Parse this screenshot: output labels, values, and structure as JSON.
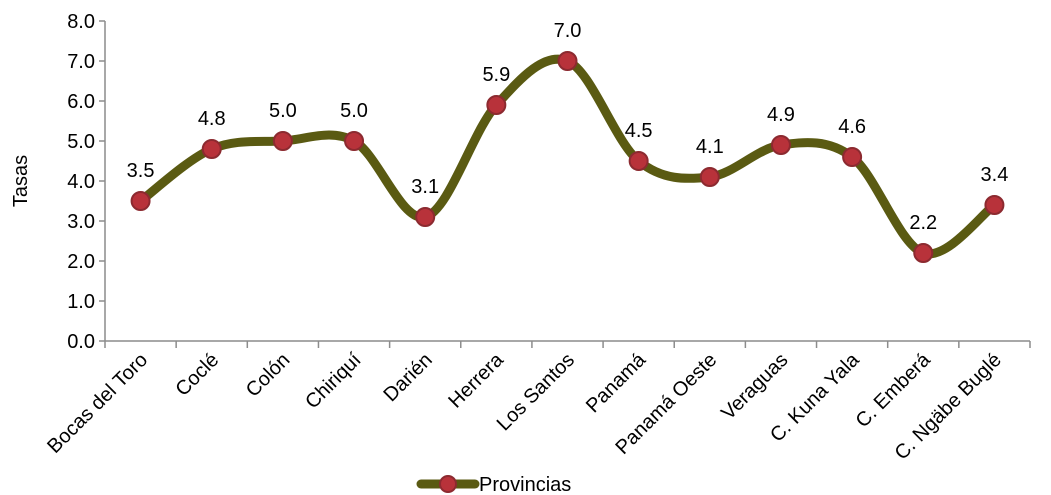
{
  "chart_data": {
    "type": "line",
    "title": "",
    "xlabel": "",
    "ylabel": "Tasas",
    "ylim": [
      0,
      8
    ],
    "yticks": [
      "0.0",
      "1.0",
      "2.0",
      "3.0",
      "4.0",
      "5.0",
      "6.0",
      "7.0",
      "8.0"
    ],
    "categories": [
      "Bocas del Toro",
      "Coclé",
      "Colón",
      "Chiriquí",
      "Darién",
      "Herrera",
      "Los Santos",
      "Panamá",
      "Panamá Oeste",
      "Veraguas",
      "C. Kuna Yala",
      "C. Emberá",
      "C. Ngäbe Buglé"
    ],
    "series": [
      {
        "name": "Provincias",
        "values": [
          3.5,
          4.8,
          5.0,
          5.0,
          3.1,
          5.9,
          7.0,
          4.5,
          4.1,
          4.9,
          4.6,
          2.2,
          3.4
        ],
        "labels": [
          "3.5",
          "4.8",
          "5.0",
          "5.0",
          "3.1",
          "5.9",
          "7.0",
          "4.5",
          "4.1",
          "4.9",
          "4.6",
          "2.2",
          "3.4"
        ]
      }
    ],
    "smooth": true,
    "grid": false,
    "legend": "bottom",
    "colors": {
      "line": "#5a5a12",
      "marker_fill": "#b8323a",
      "marker_stroke": "#8c2a30",
      "axis": "#8c8c8c"
    }
  }
}
